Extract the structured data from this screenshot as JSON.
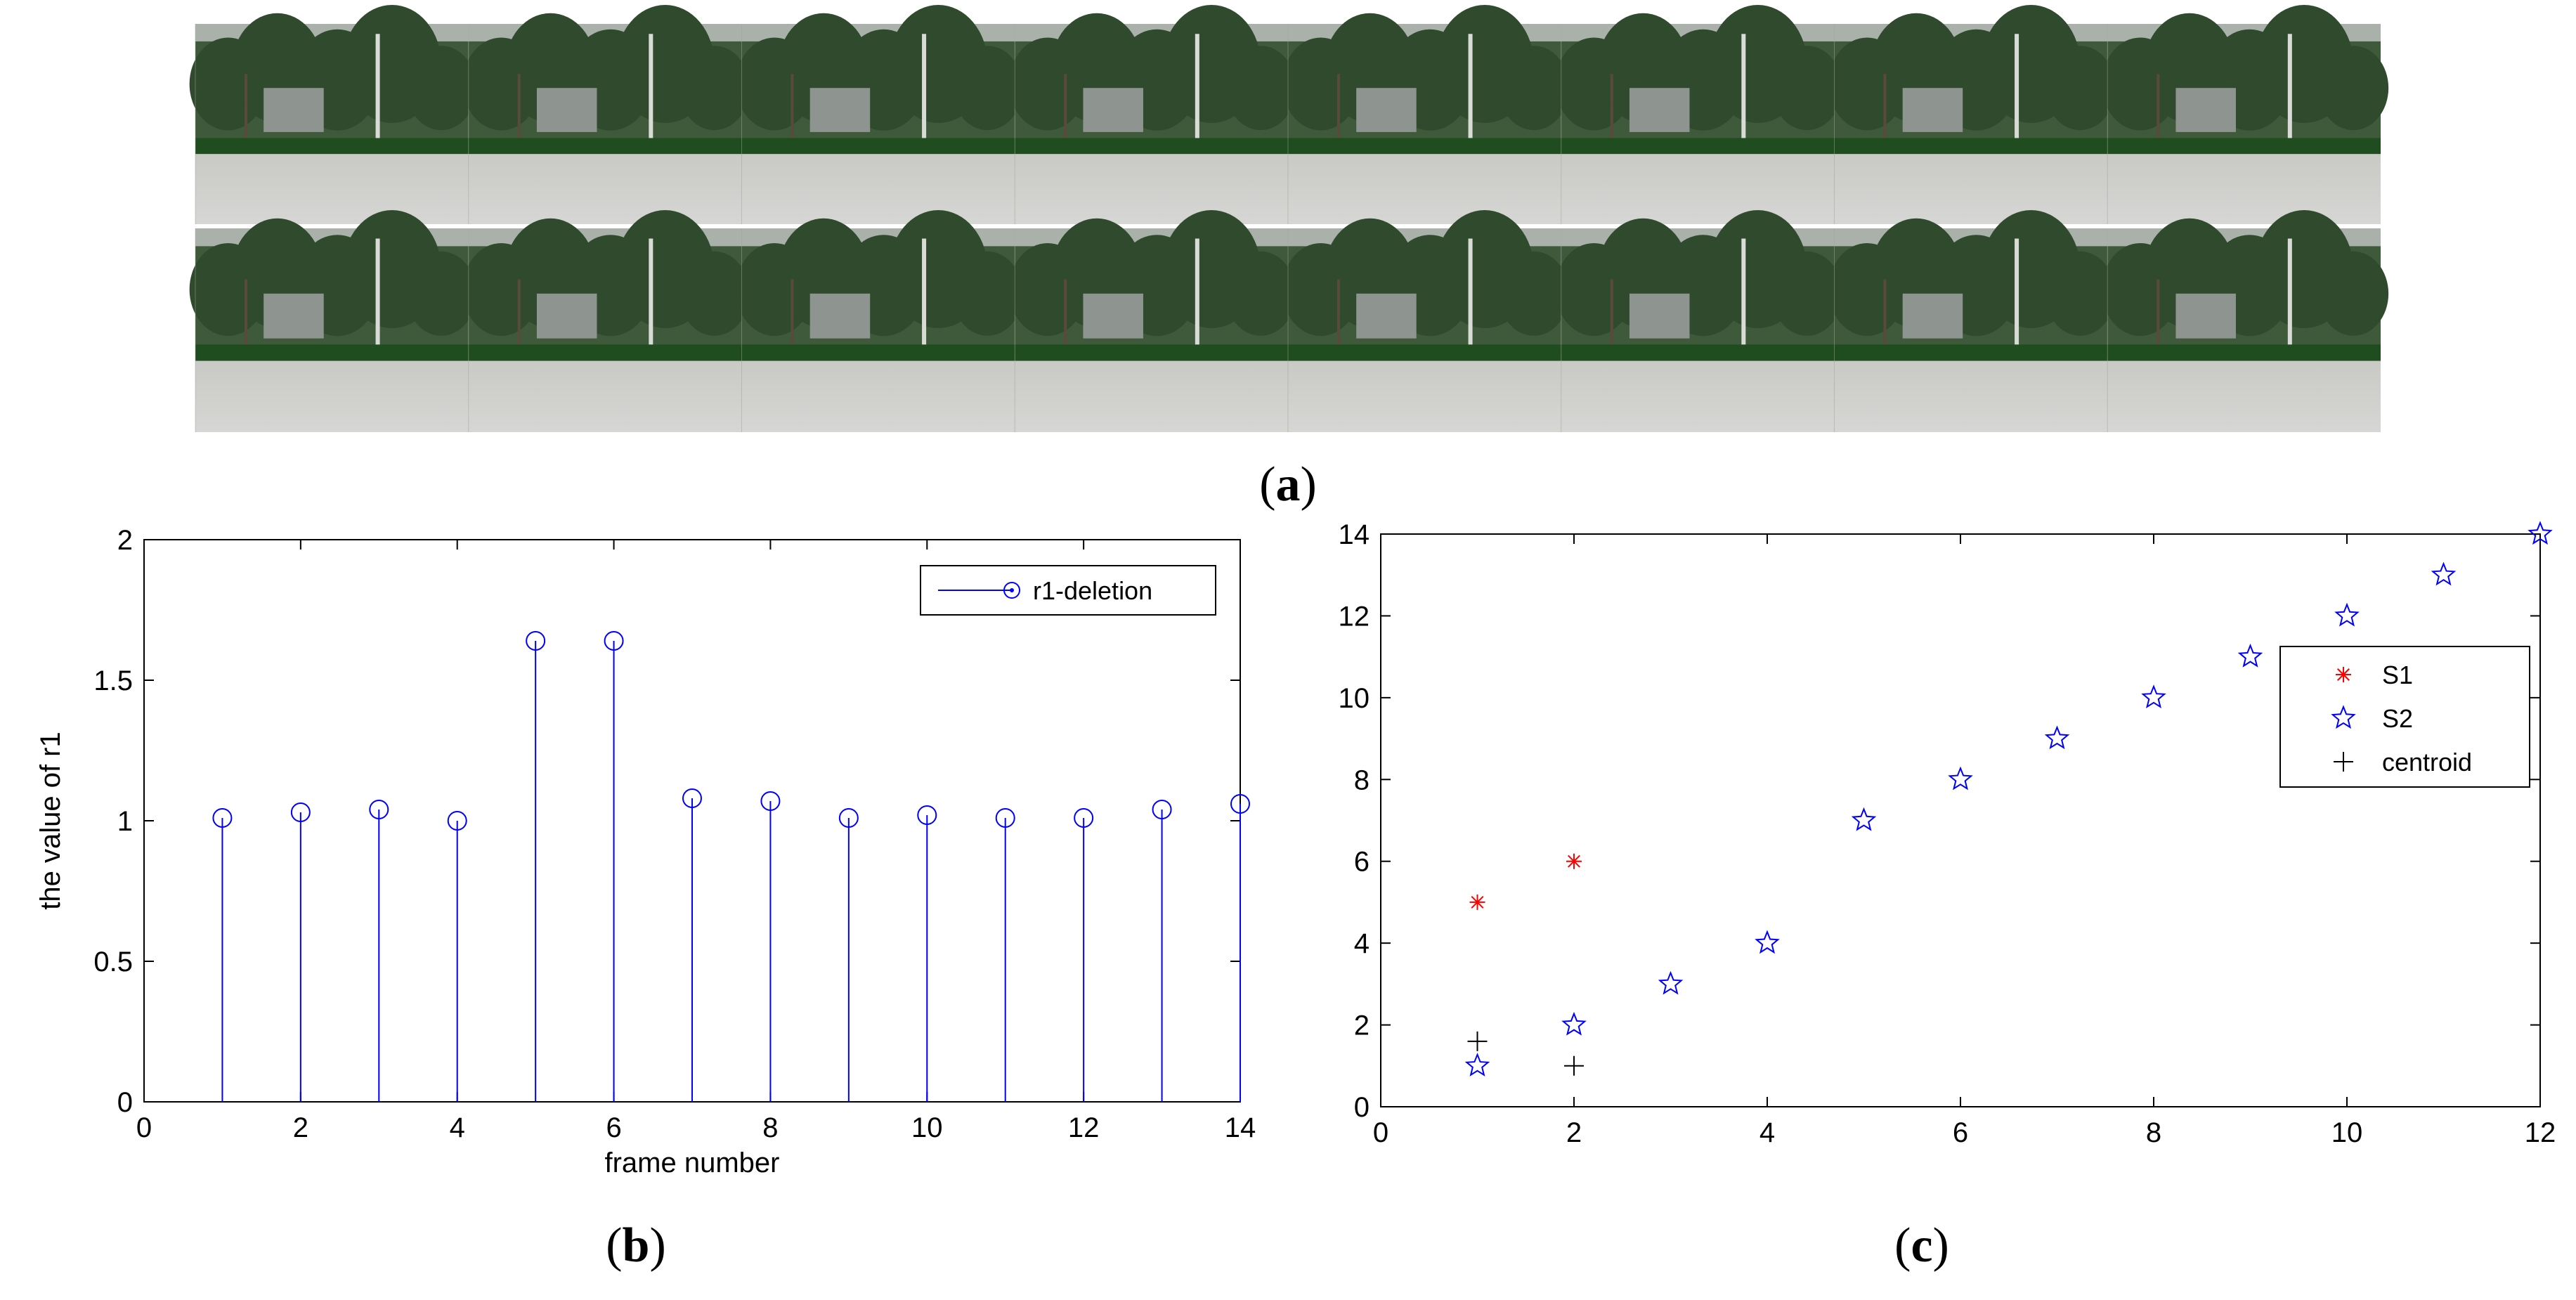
{
  "captions": {
    "a": "a",
    "b": "b",
    "c": "c"
  },
  "photo_strip": {
    "rows": 2,
    "frames_per_row": 8,
    "description_icon": "video-frame-thumbnail"
  },
  "colors": {
    "blue": "#0000ff",
    "red": "#ff0000",
    "black": "#000000",
    "axis": "#000000"
  },
  "chart_data": [
    {
      "id": "b",
      "type": "stem",
      "title": "",
      "xlabel": "frame number",
      "ylabel": "the value of r1",
      "xlim": [
        0,
        14
      ],
      "ylim": [
        0,
        2
      ],
      "xticks": [
        0,
        2,
        4,
        6,
        8,
        10,
        12,
        14
      ],
      "xtick_labels": [
        "0",
        "2",
        "4",
        "6",
        "8",
        "10",
        "12",
        "14"
      ],
      "yticks": [
        0,
        0.5,
        1,
        1.5,
        2
      ],
      "ytick_labels": [
        "0",
        "0.5",
        "1",
        "1.5",
        "2"
      ],
      "legend": {
        "location": "top-right",
        "entries": [
          "r1-deletion"
        ]
      },
      "series": [
        {
          "name": "r1-deletion",
          "color": "#0000ff",
          "x": [
            1,
            2,
            3,
            4,
            5,
            6,
            7,
            8,
            9,
            10,
            11,
            12,
            13,
            14
          ],
          "values": [
            1.01,
            1.03,
            1.04,
            1.0,
            1.64,
            1.64,
            1.08,
            1.07,
            1.01,
            1.02,
            1.01,
            1.01,
            1.04,
            1.06
          ]
        }
      ]
    },
    {
      "id": "c",
      "type": "scatter",
      "title": "",
      "xlabel": "",
      "ylabel": "",
      "xlim": [
        0,
        12
      ],
      "ylim": [
        0,
        14
      ],
      "xticks": [
        0,
        2,
        4,
        6,
        8,
        10,
        12
      ],
      "xtick_labels": [
        "0",
        "2",
        "4",
        "6",
        "8",
        "10",
        "12"
      ],
      "yticks": [
        0,
        2,
        4,
        6,
        8,
        10,
        12,
        14
      ],
      "ytick_labels": [
        "0",
        "2",
        "4",
        "6",
        "8",
        "10",
        "12",
        "14"
      ],
      "legend": {
        "location": "upper-right",
        "entries": [
          "S1",
          "S2",
          "centroid"
        ]
      },
      "series": [
        {
          "name": "S1",
          "marker": "asterisk",
          "color": "#ff0000",
          "x": [
            1,
            2
          ],
          "y": [
            5,
            6
          ]
        },
        {
          "name": "S2",
          "marker": "pentagram",
          "color": "#0000ff",
          "x": [
            1,
            2,
            3,
            4,
            5,
            6,
            7,
            8,
            9,
            10,
            11,
            12
          ],
          "y": [
            1,
            2,
            3,
            4,
            7,
            8,
            9,
            10,
            11,
            12,
            13,
            14
          ]
        },
        {
          "name": "centroid",
          "marker": "plus",
          "color": "#000000",
          "x": [
            1,
            2
          ],
          "y": [
            1.6,
            1.0
          ]
        }
      ]
    }
  ]
}
